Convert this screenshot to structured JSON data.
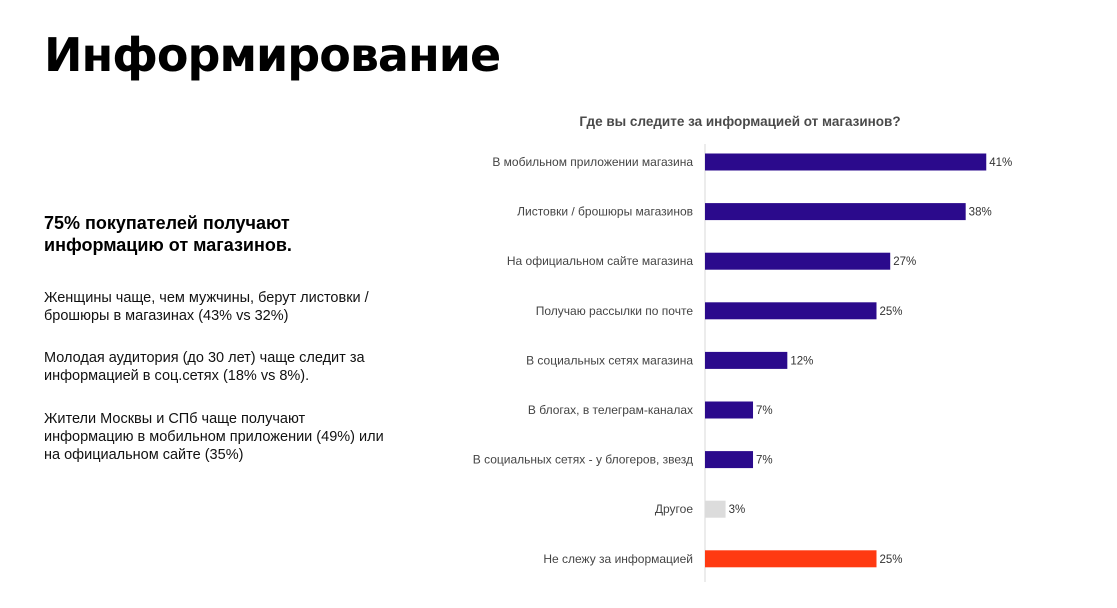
{
  "page": {
    "title": "Информирование",
    "lead": "75% покупателей получают информацию от магазинов.",
    "facts": [
      "Женщины чаще, чем мужчины, берут листовки / брошюры в магазинах (43% vs 32%)",
      "Молодая аудитория (до 30 лет) чаще следит за информацией в соц.сетях (18% vs 8%).",
      "Жители Москвы и СПб чаще получают информацию в мобильном приложении (49%) или на официальном сайте (35%)"
    ]
  },
  "chart_data": {
    "type": "bar",
    "orientation": "horizontal",
    "title": "Где вы следите за информацией от магазинов?",
    "categories": [
      "В мобильном приложении магазина",
      "Листовки / брошюры магазинов",
      "На официальном сайте магазина",
      "Получаю рассылки по почте",
      "В социальных сетях магазина",
      "В блогах, в телеграм-каналах",
      "В социальных сетях - у блогеров, звезд",
      "Другое",
      "Не слежу за информацией"
    ],
    "values": [
      41,
      38,
      27,
      25,
      12,
      7,
      7,
      3,
      25
    ],
    "value_labels": [
      "41%",
      "38%",
      "27%",
      "25%",
      "12%",
      "7%",
      "7%",
      "3%",
      "25%"
    ],
    "colors": [
      "#2b0a8c",
      "#2b0a8c",
      "#2b0a8c",
      "#2b0a8c",
      "#2b0a8c",
      "#2b0a8c",
      "#2b0a8c",
      "#dcdcdc",
      "#ff3a12"
    ],
    "xlim": [
      0,
      45
    ],
    "grid": false,
    "axis_color": "#d9d9d9"
  }
}
